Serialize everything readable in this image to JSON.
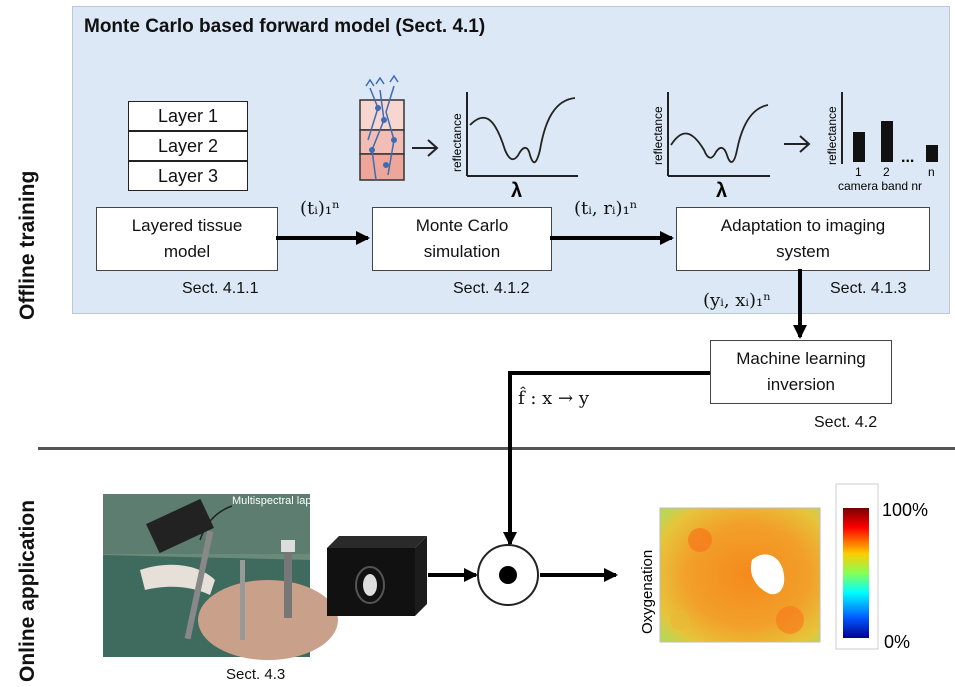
{
  "offline_label": "Offline training",
  "online_label": "Online application",
  "panel_title": "Monte Carlo based forward model (Sect. 4.1)",
  "layers": [
    "Layer 1",
    "Layer 2",
    "Layer 3"
  ],
  "boxes": {
    "tissue": {
      "line1": "Layered tissue",
      "line2": "model",
      "sect": "Sect. 4.1.1"
    },
    "mc": {
      "line1": "Monte Carlo",
      "line2": "simulation",
      "sect": "Sect. 4.1.2"
    },
    "adapt": {
      "line1": "Adaptation to imaging",
      "line2": "system",
      "sect": "Sect. 4.1.3"
    },
    "ml": {
      "line1": "Machine learning",
      "line2": "inversion",
      "sect": "Sect. 4.2"
    }
  },
  "math": {
    "t_n": "(tᵢ)₁ⁿ",
    "tr_n": "(tᵢ, rᵢ)₁ⁿ",
    "yx_n": "(yᵢ, xᵢ)₁ⁿ",
    "f_map": "f̂ : x → y"
  },
  "plot_labels": {
    "reflectance": "reflectance",
    "lambda": "λ",
    "bar_nums": [
      "1",
      "2",
      "n"
    ],
    "dots": "...",
    "camera_band": "camera band nr"
  },
  "laparoscope_label": "Multispectral laparoscope",
  "laparoscope_sect": "Sect. 4.3",
  "oxygenation_label": "Oxygenation",
  "colorbar": {
    "max": "100%",
    "min": "0%"
  },
  "colors": {
    "panel_bg": "#dce8f5",
    "arrow": "#000000",
    "tissue_fill": "#f0b8b0"
  }
}
